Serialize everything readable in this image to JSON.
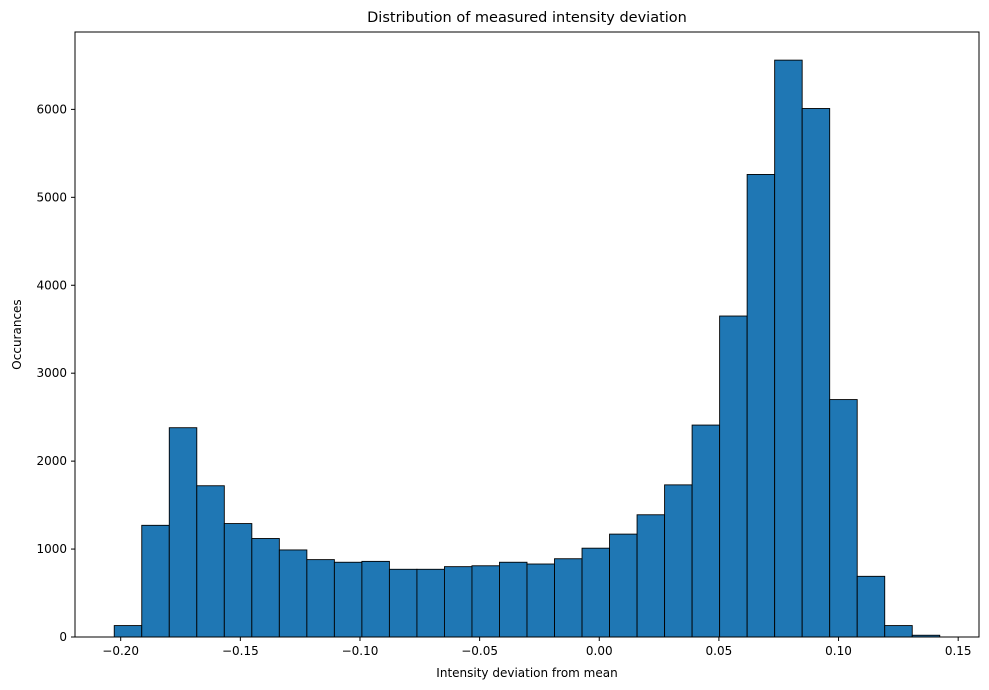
{
  "chart_data": {
    "type": "bar",
    "title": "Distribution of measured intensity deviation",
    "xlabel": "Intensity deviation from mean",
    "ylabel": "Occurances",
    "xlim": [
      -0.2191,
      0.1587
    ],
    "ylim": [
      0,
      6880
    ],
    "xticks": [
      -0.2,
      -0.15,
      -0.1,
      -0.05,
      0.0,
      0.05,
      0.1,
      0.15
    ],
    "xtick_labels": [
      "−0.20",
      "−0.15",
      "−0.10",
      "−0.05",
      "0.00",
      "0.05",
      "0.10",
      "0.15"
    ],
    "yticks": [
      0,
      1000,
      2000,
      3000,
      4000,
      5000,
      6000
    ],
    "ytick_labels": [
      "0",
      "1000",
      "2000",
      "3000",
      "4000",
      "5000",
      "6000"
    ],
    "bin_start": -0.2027,
    "bin_width": 0.0115,
    "values": [
      130,
      1270,
      2380,
      1720,
      1290,
      1120,
      990,
      880,
      850,
      860,
      770,
      770,
      800,
      810,
      850,
      830,
      890,
      1010,
      1170,
      1390,
      1730,
      2410,
      3650,
      5260,
      6560,
      6010,
      2700,
      690,
      130,
      20
    ],
    "grid": false,
    "colors": {
      "bar_fill": "#1f77b4",
      "bar_edge": "#000000"
    }
  }
}
